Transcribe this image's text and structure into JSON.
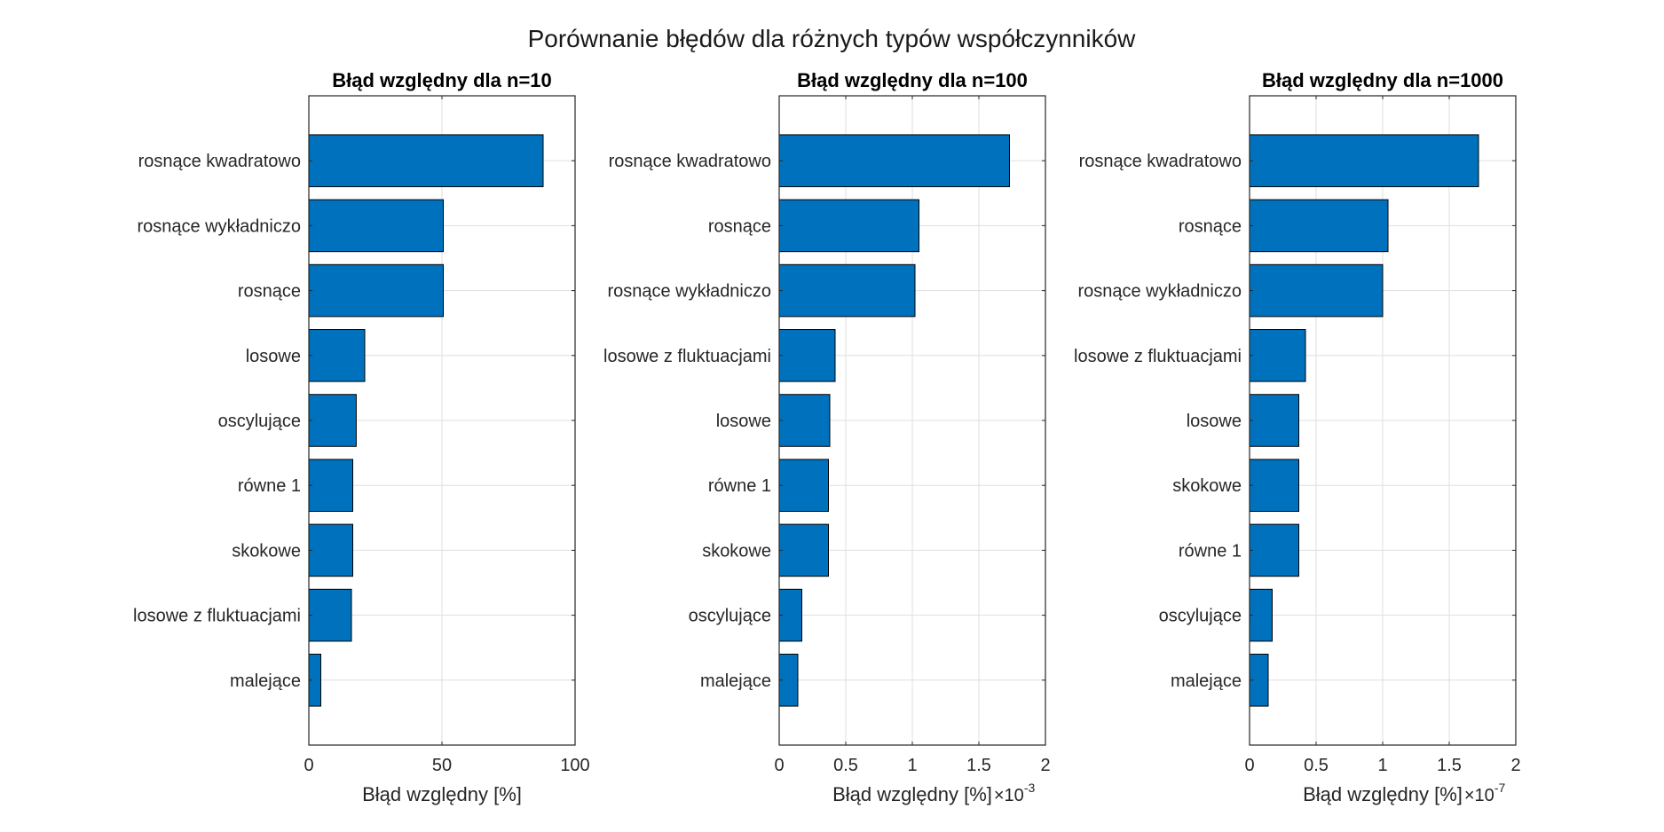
{
  "figure": {
    "title": "Porównanie błędów dla różnych typów współczynników"
  },
  "colors": {
    "bar_fill": "#0072BD",
    "bar_edge": "#000000",
    "grid": "#DFDFDF",
    "axis": "#262626",
    "background": "#FFFFFF"
  },
  "chart_data": [
    {
      "type": "bar",
      "orientation": "horizontal",
      "title": "Błąd względny dla n=10",
      "xlabel": "Błąd względny [%]",
      "x_exponent": null,
      "xlim": [
        0,
        100
      ],
      "xticks": [
        0,
        50,
        100
      ],
      "xtick_labels": [
        "0",
        "50",
        "100"
      ],
      "grid": true,
      "categories": [
        "rosnące kwadratowo",
        "rosnące wykładniczo",
        "rosnące",
        "losowe",
        "oscylujące",
        "równe 1",
        "skokowe",
        "losowe z fluktuacjami",
        "malejące"
      ],
      "values": [
        88,
        50.5,
        50.5,
        21,
        17.8,
        16.5,
        16.5,
        16,
        4.5
      ]
    },
    {
      "type": "bar",
      "orientation": "horizontal",
      "title": "Błąd względny dla n=100",
      "xlabel": "Błąd względny [%]",
      "x_exponent": "-3",
      "xlim": [
        0,
        2
      ],
      "xticks": [
        0,
        0.5,
        1,
        1.5,
        2
      ],
      "xtick_labels": [
        "0",
        "0.5",
        "1",
        "1.5",
        "2"
      ],
      "grid": true,
      "categories": [
        "rosnące kwadratowo",
        "rosnące",
        "rosnące wykładniczo",
        "losowe z fluktuacjami",
        "losowe",
        "równe 1",
        "skokowe",
        "oscylujące",
        "malejące"
      ],
      "values": [
        1.73,
        1.05,
        1.02,
        0.42,
        0.38,
        0.37,
        0.37,
        0.17,
        0.14
      ]
    },
    {
      "type": "bar",
      "orientation": "horizontal",
      "title": "Błąd względny dla n=1000",
      "xlabel": "Błąd względny [%]",
      "x_exponent": "-7",
      "xlim": [
        0,
        2
      ],
      "xticks": [
        0,
        0.5,
        1,
        1.5,
        2
      ],
      "xtick_labels": [
        "0",
        "0.5",
        "1",
        "1.5",
        "2"
      ],
      "grid": true,
      "categories": [
        "rosnące kwadratowo",
        "rosnące",
        "rosnące wykładniczo",
        "losowe z fluktuacjami",
        "losowe",
        "skokowe",
        "równe 1",
        "oscylujące",
        "malejące"
      ],
      "values": [
        1.72,
        1.04,
        1.0,
        0.42,
        0.37,
        0.37,
        0.37,
        0.17,
        0.14
      ]
    }
  ]
}
